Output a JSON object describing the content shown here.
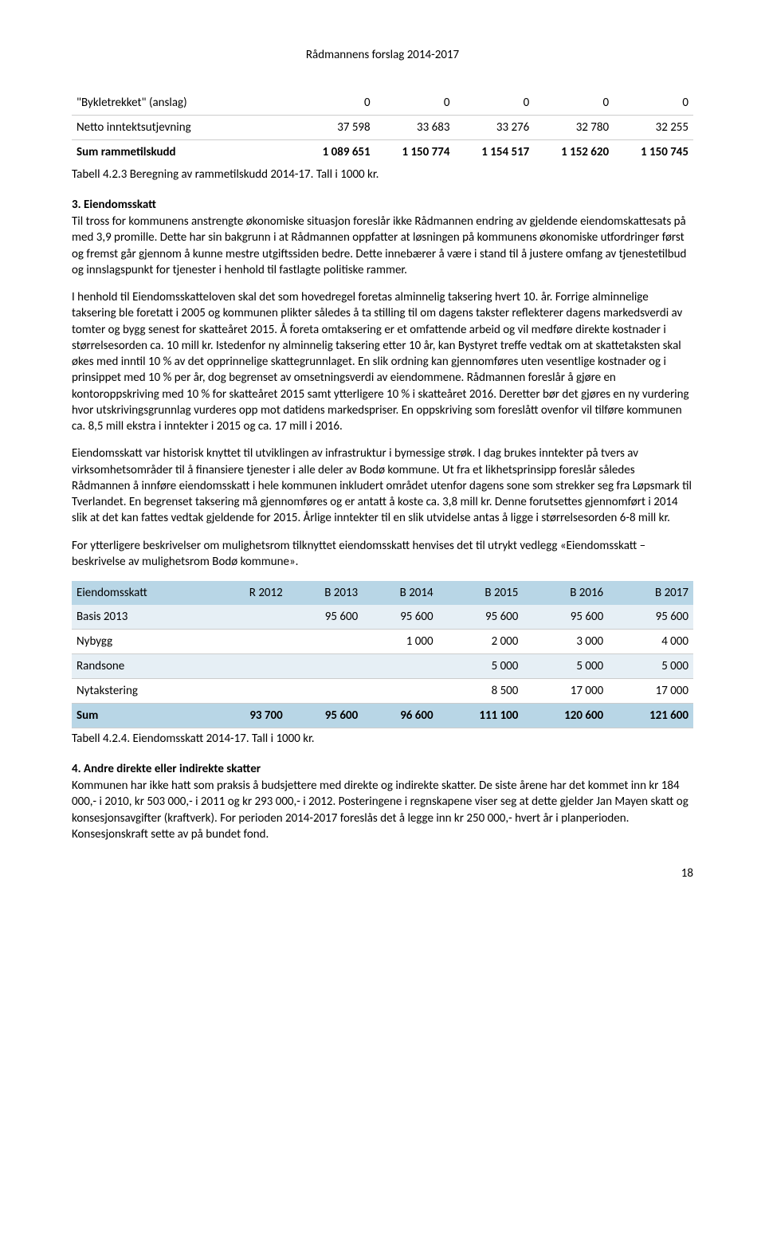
{
  "header": {
    "title": "Rådmannens forslag 2014-2017"
  },
  "top_table": {
    "type": "table",
    "columns": [
      "",
      "",
      "",
      "",
      "",
      ""
    ],
    "rows": [
      {
        "label": "\"Bykletrekket\" (anslag)",
        "vals": [
          "0",
          "0",
          "0",
          "0",
          "0"
        ],
        "bold": false
      },
      {
        "label": "Netto inntektsutjevning",
        "vals": [
          "37 598",
          "33 683",
          "33 276",
          "32 780",
          "32 255"
        ],
        "bold": false
      },
      {
        "label": "Sum rammetilskudd",
        "vals": [
          "1 089 651",
          "1 150 774",
          "1 154 517",
          "1 152 620",
          "1 150 745"
        ],
        "bold": true
      }
    ],
    "caption": "Tabell 4.2.3 Beregning av rammetilskudd 2014-17. Tall i 1000 kr."
  },
  "sections": {
    "eiendoms_heading": "3. Eiendomsskatt",
    "paragraphs": [
      "Til tross for kommunens anstrengte økonomiske situasjon foreslår ikke Rådmannen endring av gjeldende eiendomskattesats på med 3,9 promille. Dette har sin bakgrunn i at Rådmannen oppfatter at løsningen på kommunens økonomiske utfordringer først og fremst går gjennom å kunne mestre utgiftssiden bedre. Dette innebærer å være i stand til å justere omfang av tjenestetilbud og innslagspunkt for tjenester i henhold til fastlagte politiske rammer.",
      "I henhold til Eiendomsskatteloven skal det som hovedregel foretas alminnelig taksering hvert 10. år. Forrige alminnelige taksering ble foretatt i 2005 og kommunen plikter således å ta stilling til om dagens takster reflekterer dagens markedsverdi av tomter og bygg senest for skatteåret 2015. Å foreta omtaksering er et omfattende arbeid og vil medføre direkte kostnader i størrelsesorden ca. 10 mill kr. Istedenfor ny alminnelig taksering etter 10 år, kan Bystyret treffe vedtak om at skattetaksten skal økes med inntil 10 % av det opprinnelige skattegrunnlaget. En slik ordning kan gjennomføres uten vesentlige kostnader og i prinsippet med 10 % per år, dog begrenset av omsetningsverdi av eiendommene. Rådmannen foreslår å gjøre en kontoroppskriving med 10 % for skatteåret 2015 samt ytterligere 10 % i skatteåret 2016. Deretter bør det gjøres en ny vurdering hvor utskrivingsgrunnlag vurderes opp mot datidens markedspriser. En oppskriving som foreslått ovenfor vil tilføre kommunen ca. 8,5 mill ekstra i inntekter i 2015 og ca. 17 mill i 2016.",
      "Eiendomsskatt var historisk knyttet til utviklingen av infrastruktur i bymessige strøk. I dag brukes inntekter på tvers av virksomhetsområder til å finansiere tjenester i alle deler av Bodø kommune. Ut fra et likhetsprinsipp foreslår således Rådmannen å innføre eiendomsskatt i hele kommunen inkludert området utenfor dagens sone som strekker seg fra Løpsmark til Tverlandet. En begrenset taksering må gjennomføres og er antatt å koste ca. 3,8 mill kr. Denne forutsettes gjennomført i 2014 slik at det kan fattes vedtak gjeldende for 2015. Årlige inntekter til en slik utvidelse antas å ligge i størrelsesorden 6-8 mill kr.",
      "For ytterligere beskrivelser om mulighetsrom tilknyttet eiendomsskatt henvises det til utrykt vedlegg «Eiendomsskatt – beskrivelse av mulighetsrom Bodø kommune»."
    ]
  },
  "eiendom_table": {
    "type": "table",
    "header_bg": "#b8d6e6",
    "alt_bg": "#e6eff5",
    "columns": [
      "Eiendomsskatt",
      "R 2012",
      "B 2013",
      "B 2014",
      "B 2015",
      "B 2016",
      "B 2017"
    ],
    "rows": [
      {
        "alt": true,
        "cells": [
          "Basis 2013",
          "",
          "95 600",
          "95 600",
          "95 600",
          "95 600",
          "95 600"
        ]
      },
      {
        "alt": false,
        "cells": [
          "Nybygg",
          "",
          "",
          "1 000",
          "2 000",
          "3 000",
          "4 000"
        ]
      },
      {
        "alt": true,
        "cells": [
          "Randsone",
          "",
          "",
          "",
          "5 000",
          "5 000",
          "5 000"
        ]
      },
      {
        "alt": false,
        "cells": [
          "Nytakstering",
          "",
          "",
          "",
          "8 500",
          "17 000",
          "17 000"
        ]
      }
    ],
    "sum_row": {
      "cells": [
        "Sum",
        "93 700",
        "95 600",
        "96 600",
        "111 100",
        "120 600",
        "121 600"
      ]
    },
    "caption": "Tabell 4.2.4. Eiendomsskatt 2014-17. Tall i 1000 kr."
  },
  "andre": {
    "heading": "4. Andre direkte eller indirekte skatter",
    "paragraph": "Kommunen har ikke hatt som praksis å budsjettere med direkte og indirekte skatter. De siste årene har det kommet inn kr 184 000,- i 2010, kr 503 000,- i 2011 og kr 293 000,- i 2012. Posteringene i regnskapene viser seg at dette gjelder Jan Mayen skatt og konsesjonsavgifter (kraftverk). For perioden 2014-2017 foreslås det å legge inn kr 250 000,- hvert år i planperioden. Konsesjonskraft sette av på bundet fond."
  },
  "page_number": "18"
}
